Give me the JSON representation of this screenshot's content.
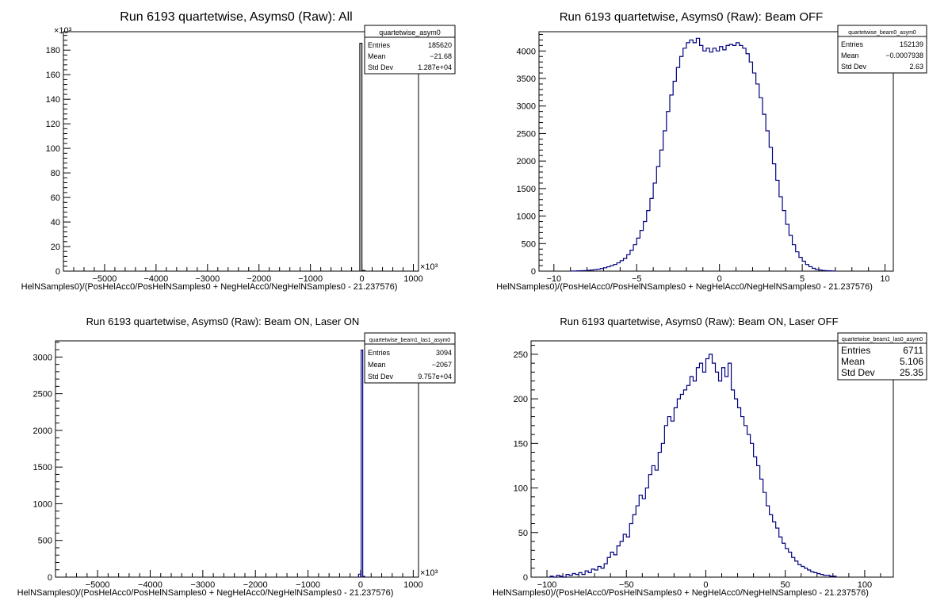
{
  "chart_data": [
    {
      "type": "histogram",
      "title": "Run 6193 quartetwise, Asyms0 (Raw): All",
      "xlabel": "HelNSamples0)/(PosHelAcc0/PosHelNSamples0 + NegHelAcc0/NegHelNSamples0 - 21.237576)",
      "ylabel": "",
      "x_multiplier": "×10³",
      "y_multiplier": "×10³",
      "xlim": [
        -5800,
        1100
      ],
      "ylim": [
        0,
        195
      ],
      "x_ticks": [
        -5000,
        -4000,
        -3000,
        -2000,
        -1000,
        0,
        1000
      ],
      "y_ticks": [
        0,
        20,
        40,
        60,
        80,
        100,
        120,
        140,
        160,
        180
      ],
      "line_color": "#000000",
      "bins": [
        [
          -40,
          0,
          185.6
        ],
        [
          0,
          60,
          0.5
        ]
      ],
      "stats": {
        "name": "quartetwise_asym0",
        "rows": [
          [
            "Entries",
            "185620"
          ],
          [
            "Mean",
            "−21.68"
          ],
          [
            "Std Dev",
            "1.287e+04"
          ]
        ]
      }
    },
    {
      "type": "histogram",
      "title": "Run 6193 quartetwise, Asyms0 (Raw): Beam OFF",
      "xlabel": "HelNSamples0)/(PosHelAcc0/PosHelNSamples0 + NegHelAcc0/NegHelNSamples0 - 21.237576)",
      "ylabel": "",
      "xlim": [
        -10.9,
        10.5
      ],
      "ylim": [
        0,
        4350
      ],
      "x_ticks": [
        -10,
        -5,
        0,
        5,
        10
      ],
      "y_ticks": [
        0,
        500,
        1000,
        1500,
        2000,
        2500,
        3000,
        3500,
        4000
      ],
      "line_color": "#00007f",
      "bin_start": -9.0,
      "bin_width": 0.2,
      "counts": [
        2,
        3,
        5,
        8,
        10,
        15,
        20,
        28,
        35,
        48,
        60,
        78,
        100,
        120,
        150,
        190,
        230,
        300,
        380,
        480,
        600,
        740,
        900,
        1100,
        1320,
        1600,
        1900,
        2200,
        2550,
        2900,
        3200,
        3450,
        3700,
        3900,
        4050,
        4150,
        4200,
        4150,
        4230,
        4100,
        4000,
        4050,
        3980,
        4050,
        4000,
        4080,
        4020,
        4100,
        4120,
        4100,
        4150,
        4100,
        4050,
        3950,
        3800,
        3600,
        3400,
        3150,
        2850,
        2550,
        2250,
        1950,
        1650,
        1350,
        1100,
        850,
        650,
        480,
        350,
        250,
        180,
        120,
        80,
        50,
        30,
        20,
        12,
        8,
        5,
        3
      ],
      "stats": {
        "name": "quartetwise_beam0_asym0",
        "rows": [
          [
            "Entries",
            "152139"
          ],
          [
            "Mean",
            "−0.0007938"
          ],
          [
            "Std Dev",
            "2.63"
          ]
        ]
      }
    },
    {
      "type": "histogram",
      "title": "Run 6193 quartetwise, Asyms0 (Raw): Beam ON, Laser ON",
      "xlabel": "HelNSamples0)/(PosHelAcc0/PosHelNSamples0 + NegHelAcc0/NegHelNSamples0 - 21.237576)",
      "ylabel": "",
      "x_multiplier": "×10³",
      "xlim": [
        -5800,
        1100
      ],
      "ylim": [
        0,
        3220
      ],
      "x_ticks": [
        -5000,
        -4000,
        -3000,
        -2000,
        -1000,
        0,
        1000
      ],
      "y_ticks": [
        0,
        500,
        1000,
        1500,
        2000,
        2500,
        3000
      ],
      "line_color": "#00007f",
      "bins": [
        [
          -40,
          10,
          40
        ],
        [
          10,
          40,
          3094
        ],
        [
          40,
          80,
          10
        ]
      ],
      "stats": {
        "name": "quartetwise_beam1_las1_asym0",
        "rows": [
          [
            "Entries",
            "3094"
          ],
          [
            "Mean",
            "−2067"
          ],
          [
            "Std Dev",
            "9.757e+04"
          ]
        ]
      }
    },
    {
      "type": "histogram",
      "title": "Run 6193 quartetwise, Asyms0 (Raw): Beam ON, Laser OFF",
      "xlabel": "HelNSamples0)/(PosHelAcc0/PosHelNSamples0 + NegHelAcc0/NegHelNSamples0 - 21.237576)",
      "ylabel": "",
      "xlim": [
        -110,
        118
      ],
      "ylim": [
        0,
        265
      ],
      "x_ticks": [
        -100,
        -50,
        0,
        50,
        100
      ],
      "y_ticks": [
        0,
        50,
        100,
        150,
        200,
        250
      ],
      "line_color": "#00007f",
      "bin_start": -98,
      "bin_width": 2,
      "counts": [
        1,
        0,
        2,
        1,
        0,
        3,
        2,
        4,
        3,
        5,
        3,
        7,
        5,
        9,
        8,
        12,
        10,
        15,
        22,
        28,
        25,
        35,
        40,
        48,
        45,
        60,
        70,
        80,
        92,
        88,
        100,
        115,
        125,
        120,
        140,
        150,
        170,
        180,
        175,
        190,
        200,
        205,
        210,
        215,
        225,
        220,
        235,
        240,
        230,
        245,
        250,
        240,
        230,
        220,
        235,
        225,
        240,
        210,
        200,
        190,
        180,
        170,
        160,
        150,
        135,
        125,
        110,
        95,
        80,
        70,
        62,
        55,
        45,
        38,
        32,
        28,
        22,
        18,
        14,
        12,
        10,
        8,
        6,
        5,
        4,
        3,
        2,
        2,
        1,
        1
      ],
      "stats": {
        "name": "quartetwise_beam1_las0_asym0",
        "rows": [
          [
            "Entries",
            "6711"
          ],
          [
            "Mean",
            "5.106"
          ],
          [
            "Std Dev",
            "25.35"
          ]
        ]
      }
    }
  ]
}
